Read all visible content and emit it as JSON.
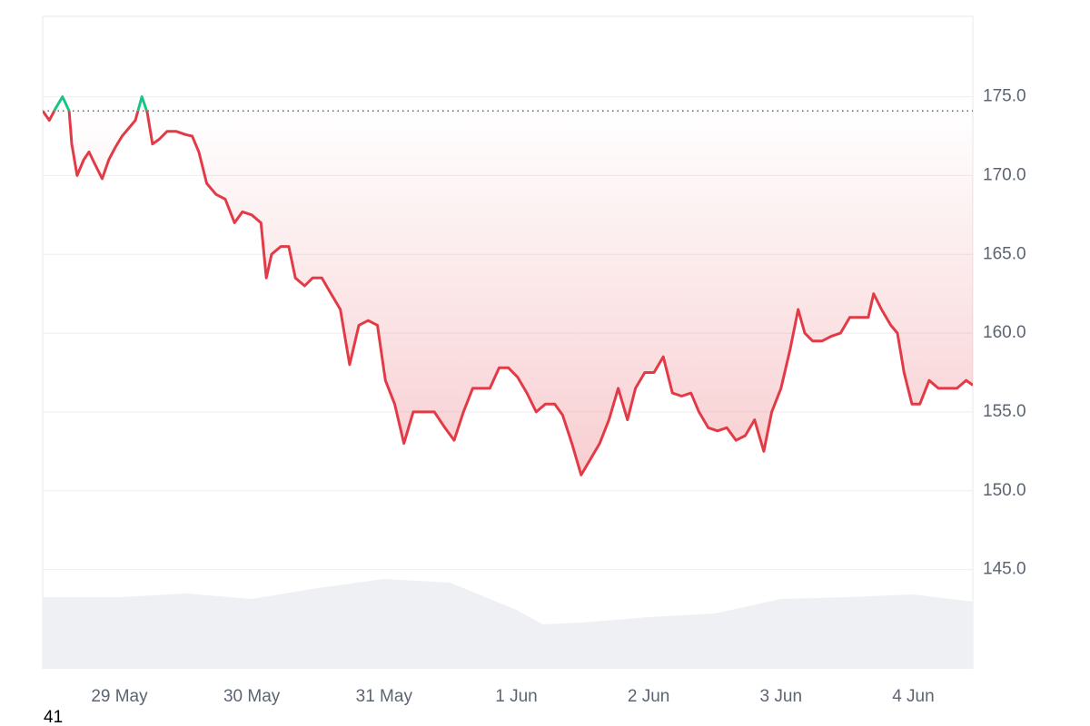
{
  "chart_data": {
    "type": "line",
    "x": [
      28.42,
      28.47,
      28.52,
      28.57,
      28.62,
      28.64,
      28.68,
      28.73,
      28.77,
      28.81,
      28.87,
      28.92,
      28.97,
      29.02,
      29.07,
      29.12,
      29.17,
      29.21,
      29.25,
      29.3,
      29.36,
      29.43,
      29.5,
      29.55,
      29.6,
      29.66,
      29.73,
      29.8,
      29.87,
      29.93,
      30.0,
      30.07,
      30.11,
      30.15,
      30.22,
      30.28,
      30.33,
      30.4,
      30.46,
      30.53,
      30.6,
      30.67,
      30.74,
      30.81,
      30.88,
      30.95,
      31.01,
      31.08,
      31.15,
      31.22,
      31.29,
      31.38,
      31.46,
      31.53,
      31.6,
      31.67,
      31.74,
      31.8,
      31.87,
      31.94,
      32.01,
      32.08,
      32.15,
      32.22,
      32.29,
      32.35,
      32.42,
      32.49,
      32.56,
      32.63,
      32.7,
      32.77,
      32.84,
      32.9,
      32.97,
      33.04,
      33.11,
      33.18,
      33.25,
      33.32,
      33.38,
      33.45,
      33.52,
      33.59,
      33.66,
      33.73,
      33.8,
      33.87,
      33.93,
      34.0,
      34.07,
      34.13,
      34.18,
      34.24,
      34.31,
      34.38,
      34.45,
      34.52,
      34.59,
      34.66,
      34.7,
      34.76,
      34.83,
      34.88,
      34.93,
      34.99,
      35.05,
      35.12,
      35.19,
      35.26,
      35.33,
      35.4,
      35.45
    ],
    "values": [
      174.1,
      173.5,
      174.3,
      175.0,
      174.1,
      172,
      170,
      171,
      171.5,
      170.8,
      169.8,
      171,
      171.8,
      172.5,
      173,
      173.5,
      175.0,
      174,
      172,
      172.3,
      172.8,
      172.8,
      172.6,
      172.5,
      171.5,
      169.5,
      168.8,
      168.5,
      167,
      167.7,
      167.5,
      167,
      163.5,
      165,
      165.5,
      165.5,
      163.5,
      163,
      163.5,
      163.5,
      162.5,
      161.5,
      158,
      160.5,
      160.8,
      160.5,
      157,
      155.5,
      153,
      155,
      155,
      155,
      154,
      153.2,
      155,
      156.5,
      156.5,
      156.5,
      157.8,
      157.8,
      157.2,
      156.2,
      155,
      155.5,
      155.5,
      154.8,
      153,
      151,
      152,
      153,
      154.5,
      156.5,
      154.5,
      156.5,
      157.5,
      157.5,
      158.5,
      156.2,
      156.0,
      156.2,
      155,
      154,
      153.8,
      154,
      153.2,
      153.5,
      154.5,
      152.5,
      155,
      156.5,
      159,
      161.5,
      160,
      159.5,
      159.5,
      159.8,
      160,
      161,
      161,
      161,
      162.5,
      161.5,
      160.5,
      160,
      157.5,
      155.5,
      155.5,
      157,
      156.5,
      156.5,
      156.5,
      157,
      156.7
    ],
    "color": "#e23b47",
    "above_color": "#16c784",
    "baseline": 174.1,
    "xlim": [
      28.42,
      35.45
    ],
    "ylim": [
      138.7,
      180.1
    ],
    "xticks": [
      {
        "value": 29,
        "label": "29 May"
      },
      {
        "value": 30,
        "label": "30 May"
      },
      {
        "value": 31,
        "label": "31 May"
      },
      {
        "value": 32,
        "label": "1 Jun"
      },
      {
        "value": 33,
        "label": "2 Jun"
      },
      {
        "value": 34,
        "label": "3 Jun"
      },
      {
        "value": 35,
        "label": "4 Jun"
      }
    ],
    "yticks": [
      {
        "value": 145,
        "label": "145.0"
      },
      {
        "value": 150,
        "label": "150.0"
      },
      {
        "value": 155,
        "label": "155.0"
      },
      {
        "value": 160,
        "label": "160.0"
      },
      {
        "value": 165,
        "label": "165.0"
      },
      {
        "value": 170,
        "label": "170.0"
      },
      {
        "value": 175,
        "label": "175.0"
      }
    ],
    "grid": true,
    "volume": {
      "x": [
        28.42,
        29.0,
        29.5,
        30.0,
        30.5,
        31.0,
        31.5,
        32.0,
        32.2,
        32.5,
        33.0,
        33.5,
        34.0,
        34.5,
        35.0,
        35.45
      ],
      "values": [
        79,
        79,
        83,
        77,
        89,
        99,
        95,
        65,
        49,
        51,
        57,
        61,
        77,
        79,
        82,
        74
      ],
      "color": "#eef0f3"
    },
    "y2lim": [
      0,
      100
    ]
  },
  "footer_text": "41"
}
